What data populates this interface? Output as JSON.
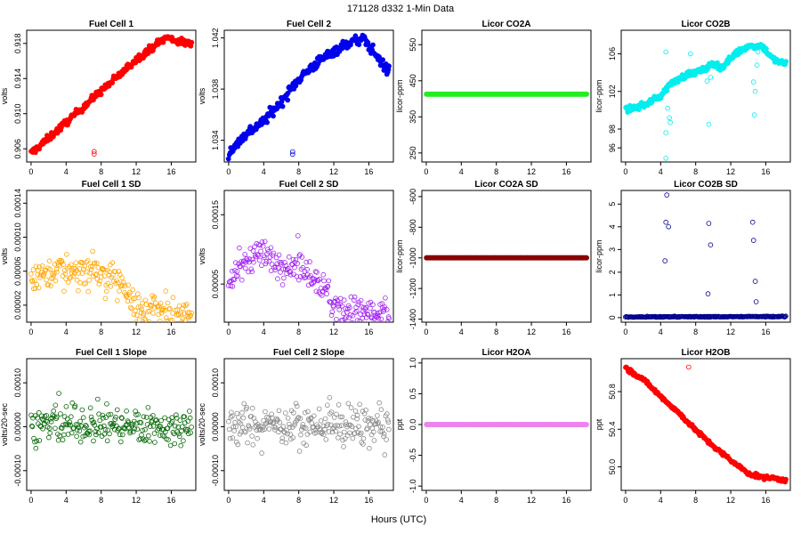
{
  "figure": {
    "title": "171128   d332   1-Min Data",
    "xlabel": "Hours (UTC)"
  },
  "chart_data": [
    {
      "type": "scatter",
      "title": "Fuel Cell 1",
      "ylabel": "volts",
      "color": "#ff0000",
      "fill": true,
      "xlim": [
        -0.5,
        18.8
      ],
      "ylim": [
        0.9045,
        0.9195
      ],
      "xticks": [
        0,
        4,
        8,
        12,
        16
      ],
      "yticks": [
        0.906,
        0.91,
        0.914,
        0.918
      ],
      "ytick_labels": [
        "0.906",
        "0.910",
        "0.914",
        "0.918"
      ],
      "trend": [
        [
          0,
          0.9055
        ],
        [
          2,
          0.9072
        ],
        [
          4,
          0.909
        ],
        [
          6,
          0.9108
        ],
        [
          8,
          0.9126
        ],
        [
          10,
          0.9143
        ],
        [
          12,
          0.9162
        ],
        [
          14,
          0.9177
        ],
        [
          15.5,
          0.9187
        ],
        [
          16.5,
          0.9183
        ],
        [
          18,
          0.918
        ]
      ],
      "noise": 0.0004,
      "outliers": [
        [
          7.2,
          0.9057
        ],
        [
          7.2,
          0.9054
        ]
      ]
    },
    {
      "type": "scatter",
      "title": "Fuel Cell 2",
      "ylabel": "volts",
      "color": "#0000ee",
      "fill": true,
      "xlim": [
        -0.5,
        18.8
      ],
      "ylim": [
        1.0323,
        1.0426
      ],
      "xticks": [
        0,
        4,
        8,
        12,
        16
      ],
      "yticks": [
        1.034,
        1.038,
        1.042
      ],
      "ytick_labels": [
        "1.034",
        "1.038",
        "1.042"
      ],
      "trend": [
        [
          0,
          1.033
        ],
        [
          2,
          1.0345
        ],
        [
          4,
          1.0355
        ],
        [
          6,
          1.037
        ],
        [
          8,
          1.0388
        ],
        [
          10,
          1.04
        ],
        [
          12,
          1.041
        ],
        [
          14,
          1.0417
        ],
        [
          15.5,
          1.0419
        ],
        [
          17,
          1.0405
        ],
        [
          18,
          1.0395
        ]
      ],
      "noise": 0.0004,
      "outliers": [
        [
          7.3,
          1.0331
        ],
        [
          7.3,
          1.0329
        ]
      ]
    },
    {
      "type": "scatter",
      "title": "Licor CO2A",
      "ylabel": "licor-ppm",
      "color": "#22ee22",
      "fill": true,
      "xlim": [
        -0.5,
        18.8
      ],
      "ylim": [
        225,
        590
      ],
      "xticks": [
        0,
        4,
        8,
        12,
        16
      ],
      "yticks": [
        250,
        350,
        450,
        550
      ],
      "ytick_labels": [
        "250",
        "350",
        "450",
        "550"
      ],
      "trend": [
        [
          0,
          413
        ],
        [
          18.5,
          413
        ]
      ],
      "noise": 0,
      "outliers": []
    },
    {
      "type": "scatter",
      "title": "Licor CO2B",
      "ylabel": "licor-ppm",
      "color": "#00eeee",
      "fill": true,
      "xlim": [
        -0.5,
        18.8
      ],
      "ylim": [
        94.5,
        108.5
      ],
      "xticks": [
        0,
        4,
        8,
        12,
        16
      ],
      "yticks": [
        96,
        98,
        102,
        106
      ],
      "ytick_labels": [
        "96",
        "98",
        "102",
        "106"
      ],
      "trend": [
        [
          0,
          100.0
        ],
        [
          2,
          100.5
        ],
        [
          4,
          101.5
        ],
        [
          5,
          102.7
        ],
        [
          7,
          103.8
        ],
        [
          9,
          104.3
        ],
        [
          10,
          105.0
        ],
        [
          11,
          104.5
        ],
        [
          12.5,
          106.0
        ],
        [
          14,
          106.8
        ],
        [
          15.5,
          106.9
        ],
        [
          17,
          105.3
        ],
        [
          18,
          105.0
        ]
      ],
      "noise": 0.3,
      "outliers": [
        [
          4.6,
          106.2
        ],
        [
          4.6,
          97.6
        ],
        [
          4.6,
          94.9
        ],
        [
          4.8,
          100.2
        ],
        [
          5.0,
          99.2
        ],
        [
          5.1,
          98.7
        ],
        [
          7.0,
          104.0
        ],
        [
          7.4,
          106.0
        ],
        [
          9.3,
          103.1
        ],
        [
          9.5,
          98.5
        ],
        [
          9.7,
          103.5
        ],
        [
          14.6,
          103.0
        ],
        [
          14.7,
          99.5
        ],
        [
          14.8,
          102.0
        ],
        [
          15.0,
          104.8
        ],
        [
          15.1,
          106.2
        ]
      ]
    },
    {
      "type": "scatter",
      "title": "Fuel Cell 1 SD",
      "ylabel": "volts",
      "color": "#ffa500",
      "fill": false,
      "xlim": [
        -0.5,
        18.8
      ],
      "ylim": [
        0,
        0.000155
      ],
      "xticks": [
        0,
        4,
        8,
        12,
        16
      ],
      "yticks": [
        2e-05,
        6e-05,
        0.0001,
        0.00014
      ],
      "ytick_labels": [
        "0.00002",
        "0.00006",
        "0.00010",
        "0.00014"
      ],
      "trend": [
        [
          0,
          5e-05
        ],
        [
          3,
          6.5e-05
        ],
        [
          6,
          6e-05
        ],
        [
          9,
          5.5e-05
        ],
        [
          11,
          4e-05
        ],
        [
          12,
          1.7e-05
        ],
        [
          14,
          1.4e-05
        ],
        [
          18,
          1e-05
        ]
      ],
      "noise": 1.8e-05,
      "outliers": []
    },
    {
      "type": "scatter",
      "title": "Fuel Cell 2 SD",
      "ylabel": "volts",
      "color": "#a020f0",
      "fill": false,
      "xlim": [
        -0.5,
        18.8
      ],
      "ylim": [
        -5e-06,
        0.000185
      ],
      "xticks": [
        0,
        4,
        8,
        12,
        16
      ],
      "yticks": [
        5e-05,
        0.00015
      ],
      "ytick_labels": [
        "0.00005",
        "0.00015"
      ],
      "trend": [
        [
          0,
          5.5e-05
        ],
        [
          3,
          9.5e-05
        ],
        [
          6,
          8e-05
        ],
        [
          9,
          7e-05
        ],
        [
          11,
          4.5e-05
        ],
        [
          12,
          2e-05
        ],
        [
          14,
          1.2e-05
        ],
        [
          18,
          5e-06
        ]
      ],
      "noise": 2e-05,
      "outliers": []
    },
    {
      "type": "scatter",
      "title": "Licor CO2A SD",
      "ylabel": "licor-ppm",
      "color": "#8b0000",
      "fill": true,
      "xlim": [
        -0.5,
        18.8
      ],
      "ylim": [
        -1420,
        -560
      ],
      "xticks": [
        0,
        4,
        8,
        12,
        16
      ],
      "yticks": [
        -1400,
        -1200,
        -1000,
        -800,
        -600
      ],
      "ytick_labels": [
        "-1400",
        "-1200",
        "-1000",
        "-800",
        "-600"
      ],
      "trend": [
        [
          0,
          -1000
        ],
        [
          18.5,
          -1000
        ]
      ],
      "noise": 0,
      "outliers": []
    },
    {
      "type": "scatter",
      "title": "Licor CO2B SD",
      "ylabel": "licor-ppm",
      "color": "#00008b",
      "fill": false,
      "xlim": [
        -0.5,
        18.8
      ],
      "ylim": [
        -0.2,
        5.6
      ],
      "xticks": [
        0,
        4,
        8,
        12,
        16
      ],
      "yticks": [
        0,
        1,
        2,
        3,
        4,
        5
      ],
      "ytick_labels": [
        "0",
        "1",
        "2",
        "3",
        "4",
        "5"
      ],
      "trend": [
        [
          0,
          0.03
        ],
        [
          18.5,
          0.05
        ]
      ],
      "noise": 0.02,
      "outliers": [
        [
          4.5,
          2.5
        ],
        [
          4.6,
          4.2
        ],
        [
          4.7,
          5.4
        ],
        [
          4.9,
          4.0
        ],
        [
          9.4,
          1.05
        ],
        [
          9.5,
          4.15
        ],
        [
          9.7,
          3.2
        ],
        [
          14.5,
          4.2
        ],
        [
          14.6,
          3.4
        ],
        [
          14.8,
          1.6
        ],
        [
          14.9,
          0.7
        ]
      ]
    },
    {
      "type": "scatter",
      "title": "Fuel Cell 1 Slope",
      "ylabel": "volts/20-sec",
      "color": "#006400",
      "fill": false,
      "xlim": [
        -0.5,
        18.8
      ],
      "ylim": [
        -0.000145,
        0.000155
      ],
      "xticks": [
        0,
        4,
        8,
        12,
        16
      ],
      "yticks": [
        -0.0001,
        0.0,
        0.0001
      ],
      "ytick_labels": [
        "-0.00010",
        "0.00000",
        "0.00010"
      ],
      "trend": [
        [
          0,
          5e-06
        ],
        [
          11,
          5e-06
        ],
        [
          12,
          0.0
        ],
        [
          18,
          0.0
        ]
      ],
      "noise": 4e-05,
      "outliers": []
    },
    {
      "type": "scatter",
      "title": "Fuel Cell 2 Slope",
      "ylabel": "volts/20-sec",
      "color": "#888888",
      "fill": false,
      "xlim": [
        -0.5,
        18.8
      ],
      "ylim": [
        -0.000145,
        0.000155
      ],
      "xticks": [
        0,
        4,
        8,
        12,
        16
      ],
      "yticks": [
        -0.0001,
        0.0,
        0.0001
      ],
      "ytick_labels": [
        "-0.00010",
        "0.00000",
        "0.00010"
      ],
      "trend": [
        [
          0,
          5e-06
        ],
        [
          11,
          5e-06
        ],
        [
          12,
          0.0
        ],
        [
          18,
          0.0
        ]
      ],
      "noise": 4e-05,
      "outliers": []
    },
    {
      "type": "scatter",
      "title": "Licor H2OA",
      "ylabel": "ppt",
      "color": "#ee82ee",
      "fill": true,
      "xlim": [
        -0.5,
        18.8
      ],
      "ylim": [
        -1.07,
        1.07
      ],
      "xticks": [
        0,
        4,
        8,
        12,
        16
      ],
      "yticks": [
        -1.0,
        -0.5,
        0.0,
        0.5,
        1.0
      ],
      "ytick_labels": [
        "-1.0",
        "-0.5",
        "0.0",
        "0.5",
        "1.0"
      ],
      "trend": [
        [
          0,
          0.0
        ],
        [
          18.5,
          0.0
        ]
      ],
      "noise": 0,
      "outliers": []
    },
    {
      "type": "scatter",
      "title": "Licor H2OB",
      "ylabel": "ppt",
      "color": "#ff0000",
      "fill": true,
      "xlim": [
        -0.5,
        18.8
      ],
      "ylim": [
        49.75,
        51.15
      ],
      "xticks": [
        0,
        4,
        8,
        12,
        16
      ],
      "yticks": [
        50.0,
        50.4,
        50.8
      ],
      "ytick_labels": [
        "50.0",
        "50.4",
        "50.8"
      ],
      "trend": [
        [
          0,
          51.05
        ],
        [
          2,
          50.93
        ],
        [
          4,
          50.75
        ],
        [
          6,
          50.58
        ],
        [
          8,
          50.39
        ],
        [
          10,
          50.22
        ],
        [
          12,
          50.07
        ],
        [
          14,
          49.93
        ],
        [
          15.5,
          49.89
        ],
        [
          17,
          49.88
        ],
        [
          18,
          49.86
        ]
      ],
      "noise": 0.02,
      "outliers": [
        [
          7.2,
          51.06
        ]
      ]
    }
  ]
}
